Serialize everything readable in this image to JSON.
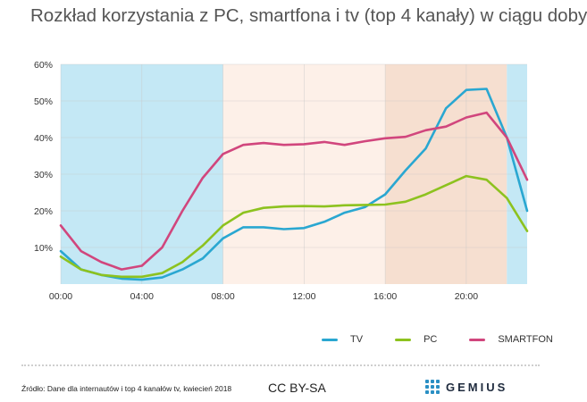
{
  "title": "Rozkład korzystania z PC, smartfona i tv (top 4 kanały) w ciągu doby",
  "source": "Źródło: Dane dla internautów i top 4 kanałów tv, kwiecień 2018",
  "license": "CC BY-SA",
  "logo": "GEMIUS",
  "colors": {
    "tv": "#2aa7d1",
    "pc": "#8dc21f",
    "smartfon": "#d1467d",
    "band_blue": "#c4e8f5",
    "band_light": "#fdf0e8",
    "band_dark": "#f6dfd0",
    "logo": "#2a8fc4"
  },
  "chart_data": {
    "type": "line",
    "x": [
      0,
      1,
      2,
      3,
      4,
      5,
      6,
      7,
      8,
      9,
      10,
      11,
      12,
      13,
      14,
      15,
      16,
      17,
      18,
      19,
      20,
      21,
      22,
      23
    ],
    "x_ticks": [
      "00:00",
      "04:00",
      "08:00",
      "12:00",
      "16:00",
      "20:00"
    ],
    "x_tick_positions": [
      0,
      4,
      8,
      12,
      16,
      20
    ],
    "y_ticks": [
      "10%",
      "20%",
      "30%",
      "40%",
      "50%",
      "60%"
    ],
    "ylim": [
      0,
      60
    ],
    "xlim": [
      0,
      23
    ],
    "grid": true,
    "legend": "bottom-right",
    "bands": [
      {
        "from": 0,
        "to": 8,
        "color": "band_blue"
      },
      {
        "from": 8,
        "to": 16,
        "color": "band_light"
      },
      {
        "from": 16,
        "to": 22,
        "color": "band_dark"
      },
      {
        "from": 22,
        "to": 23,
        "color": "band_blue"
      }
    ],
    "series": [
      {
        "name": "TV",
        "key": "tv",
        "values": [
          9,
          4,
          2.5,
          1.5,
          1.2,
          1.8,
          4,
          7,
          12.5,
          15.5,
          15.5,
          15,
          15.3,
          17,
          19.5,
          21,
          24.5,
          31,
          37,
          48,
          53,
          53.3,
          40,
          20
        ]
      },
      {
        "name": "PC",
        "key": "pc",
        "values": [
          7.5,
          4,
          2.5,
          2,
          2,
          3,
          6,
          10.5,
          16,
          19.5,
          20.8,
          21.2,
          21.3,
          21.2,
          21.5,
          21.6,
          21.7,
          22.5,
          24.5,
          27,
          29.5,
          28.5,
          23.5,
          14.5
        ]
      },
      {
        "name": "SMARTFON",
        "key": "smartfon",
        "values": [
          16,
          9,
          6,
          4,
          5,
          10,
          20,
          29,
          35.5,
          38,
          38.5,
          38,
          38.2,
          38.8,
          38,
          39,
          39.8,
          40.2,
          42,
          43,
          45.5,
          46.8,
          40,
          28.5
        ]
      }
    ]
  }
}
